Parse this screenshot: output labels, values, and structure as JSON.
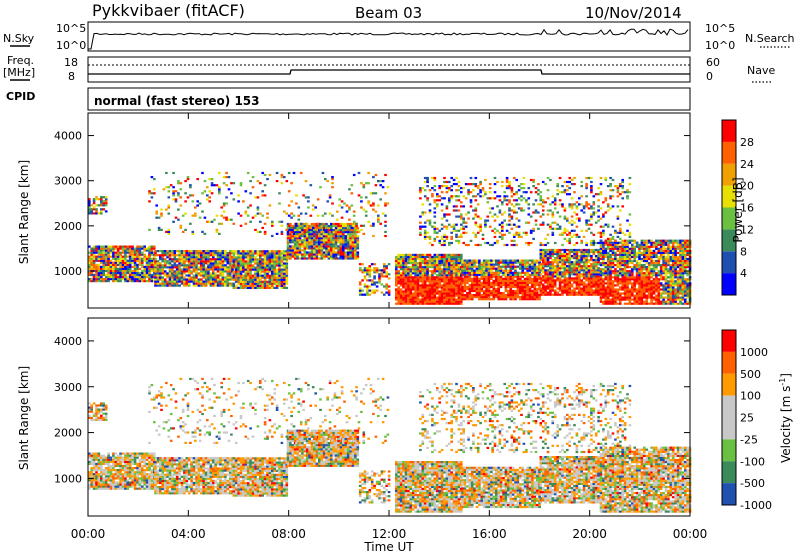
{
  "header": {
    "station": "Pykkvibaer (fitACF)",
    "beam": "Beam 03",
    "date": "10/Nov/2014"
  },
  "status_panels": {
    "nsky_label": "N.Sky",
    "nsky_ticks": [
      "10^5",
      "10^0"
    ],
    "nsearch_label": "N.Search",
    "nsearch_ticks": [
      "10^5",
      "10^0"
    ],
    "freq_label": [
      "Freq.",
      "[MHz]"
    ],
    "freq_ticks": [
      "18",
      "8"
    ],
    "nave_label": "Nave",
    "nave_ticks": [
      "60",
      "0"
    ],
    "cpid_label": "CPID",
    "cpid_text": "normal (fast stereo) 153"
  },
  "colors": {
    "power": [
      "#0000ff",
      "#1f4fb0",
      "#3a8a5a",
      "#6ac040",
      "#e8e000",
      "#f0a000",
      "#ff6000",
      "#ff0000"
    ],
    "velocity": [
      "#ff0000",
      "#ff6000",
      "#ff9a00",
      "#c8c8c8",
      "#c8c8c8",
      "#6ac040",
      "#3a8a5a",
      "#2050b0"
    ]
  },
  "chart_data": [
    {
      "type": "heatmap",
      "name": "power",
      "ylabel": "Slant Range [km]",
      "ylim": [
        180,
        4500
      ],
      "yticks": [
        "1000",
        "2000",
        "3000",
        "4000"
      ],
      "xlim": [
        0,
        24
      ],
      "colorbar_label": "Power [dB]",
      "colorbar_ticks": [
        "4",
        "8",
        "12",
        "16",
        "20",
        "24",
        "28"
      ]
    },
    {
      "type": "heatmap",
      "name": "velocity",
      "ylabel": "Slant Range [km]",
      "ylim": [
        180,
        4500
      ],
      "yticks": [
        "1000",
        "2000",
        "3000",
        "4000"
      ],
      "xlim": [
        0,
        24
      ],
      "xlabel": "Time UT",
      "xticks": [
        "00:00",
        "04:00",
        "08:00",
        "12:00",
        "16:00",
        "20:00",
        "00:00"
      ],
      "colorbar_label": "Velocity [m s",
      "colorbar_label_sup": "-1",
      "colorbar_label_end": "]",
      "colorbar_ticks": [
        "1000",
        "500",
        "100",
        "25",
        "-25",
        "-100",
        "-500",
        "-1000"
      ]
    }
  ]
}
